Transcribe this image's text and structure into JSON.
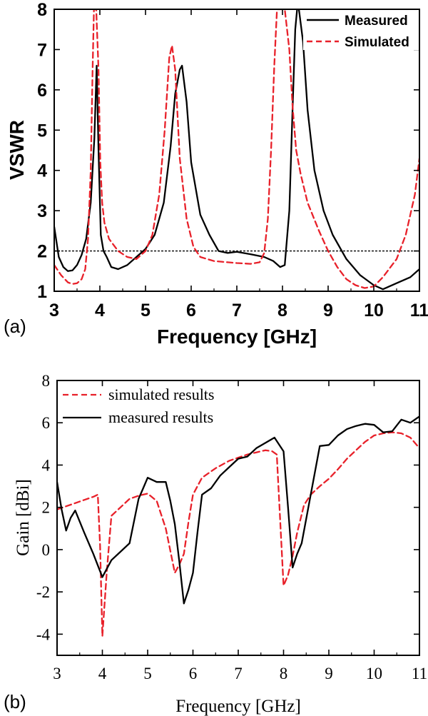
{
  "chart_data": [
    {
      "type": "line",
      "panel_label": "(a)",
      "xlabel": "Frequency [GHz]",
      "ylabel": "VSWR",
      "xlim": [
        3,
        11
      ],
      "ylim": [
        1,
        8
      ],
      "xticks": [
        3,
        4,
        5,
        6,
        7,
        8,
        9,
        10,
        11
      ],
      "yticks": [
        1,
        2,
        3,
        4,
        5,
        6,
        7,
        8
      ],
      "xtick_labels": [
        "3",
        "4",
        "5",
        "6",
        "7",
        "8",
        "9",
        "10",
        "11"
      ],
      "ytick_labels": [
        "1",
        "2",
        "3",
        "4",
        "5",
        "6",
        "7",
        "8"
      ],
      "reference_line": {
        "y": 2,
        "style": "dotted"
      },
      "legend_placement": "top-right",
      "series": [
        {
          "name": "Measured",
          "color": "#000000",
          "dash": "solid",
          "x": [
            3.0,
            3.1,
            3.2,
            3.3,
            3.4,
            3.5,
            3.6,
            3.7,
            3.8,
            3.88,
            3.93,
            3.97,
            4.02,
            4.08,
            4.15,
            4.25,
            4.4,
            4.6,
            4.8,
            5.0,
            5.2,
            5.4,
            5.55,
            5.65,
            5.75,
            5.8,
            5.9,
            6.0,
            6.2,
            6.4,
            6.6,
            6.8,
            7.0,
            7.3,
            7.6,
            7.8,
            7.95,
            8.05,
            8.15,
            8.22,
            8.28,
            8.32,
            8.36,
            8.45,
            8.55,
            8.7,
            8.9,
            9.1,
            9.4,
            9.7,
            10.0,
            10.2,
            10.5,
            10.8,
            11.0
          ],
          "y": [
            2.6,
            1.85,
            1.6,
            1.5,
            1.52,
            1.65,
            1.9,
            2.3,
            3.2,
            4.8,
            6.6,
            4.5,
            2.4,
            2.0,
            1.85,
            1.6,
            1.55,
            1.65,
            1.85,
            2.05,
            2.4,
            3.2,
            4.6,
            5.9,
            6.5,
            6.6,
            5.7,
            4.2,
            2.9,
            2.4,
            2.0,
            1.95,
            1.98,
            1.92,
            1.85,
            1.75,
            1.6,
            1.65,
            3.0,
            5.5,
            7.5,
            8.0,
            8.0,
            7.2,
            5.5,
            4.0,
            3.0,
            2.4,
            1.8,
            1.4,
            1.15,
            1.05,
            1.2,
            1.35,
            1.55
          ]
        },
        {
          "name": "Simulated",
          "color": "#e8212a",
          "dash": "dashed",
          "x": [
            3.0,
            3.15,
            3.3,
            3.4,
            3.5,
            3.6,
            3.68,
            3.74,
            3.8,
            3.84,
            3.87,
            3.92,
            3.97,
            4.01,
            4.05,
            4.1,
            4.2,
            4.4,
            4.6,
            4.8,
            5.0,
            5.15,
            5.3,
            5.42,
            5.52,
            5.58,
            5.65,
            5.75,
            5.9,
            6.05,
            6.2,
            6.5,
            6.8,
            7.0,
            7.3,
            7.5,
            7.6,
            7.68,
            7.75,
            7.82,
            7.88,
            7.95,
            8.05,
            8.15,
            8.22,
            8.3,
            8.4,
            8.55,
            8.8,
            9.0,
            9.2,
            9.4,
            9.6,
            9.8,
            10.0,
            10.2,
            10.5,
            10.7,
            10.9,
            11.0
          ],
          "y": [
            1.65,
            1.4,
            1.22,
            1.18,
            1.2,
            1.3,
            1.55,
            2.3,
            4.0,
            6.5,
            8.0,
            8.0,
            6.5,
            4.2,
            3.2,
            2.7,
            2.3,
            2.0,
            1.85,
            1.8,
            2.0,
            2.4,
            3.4,
            5.0,
            6.8,
            7.1,
            6.5,
            4.3,
            2.8,
            2.1,
            1.85,
            1.75,
            1.72,
            1.7,
            1.68,
            1.72,
            1.95,
            2.8,
            4.5,
            6.6,
            8.0,
            8.0,
            8.0,
            7.0,
            5.6,
            4.5,
            3.9,
            3.2,
            2.5,
            2.0,
            1.6,
            1.3,
            1.15,
            1.08,
            1.12,
            1.35,
            1.8,
            2.4,
            3.4,
            4.3
          ]
        }
      ]
    },
    {
      "type": "line",
      "panel_label": "(b)",
      "xlabel": "Frequency [GHz]",
      "ylabel": "Gain [dBi]",
      "xlim": [
        3,
        11
      ],
      "ylim": [
        -5,
        8
      ],
      "xticks": [
        3,
        4,
        5,
        6,
        7,
        8,
        9,
        10,
        11
      ],
      "yticks": [
        -4,
        -2,
        0,
        2,
        4,
        6,
        8
      ],
      "xtick_labels": [
        "3",
        "4",
        "5",
        "6",
        "7",
        "8",
        "9",
        "10",
        "11"
      ],
      "ytick_labels": [
        "-4",
        "-2",
        "0",
        "2",
        "4",
        "6",
        "8"
      ],
      "legend_placement": "top-left",
      "series": [
        {
          "name": "simulated results",
          "color": "#e8212a",
          "dash": "dashed",
          "x": [
            3.0,
            3.2,
            3.4,
            3.6,
            3.8,
            3.9,
            3.95,
            4.0,
            4.1,
            4.2,
            4.4,
            4.6,
            4.8,
            5.0,
            5.2,
            5.4,
            5.6,
            5.7,
            5.8,
            5.9,
            6.0,
            6.2,
            6.5,
            6.8,
            7.0,
            7.2,
            7.4,
            7.6,
            7.75,
            7.85,
            8.0,
            8.1,
            8.2,
            8.3,
            8.45,
            8.6,
            8.8,
            9.0,
            9.2,
            9.4,
            9.6,
            9.8,
            10.0,
            10.2,
            10.4,
            10.6,
            10.8,
            11.0
          ],
          "y": [
            1.9,
            2.05,
            2.2,
            2.35,
            2.5,
            2.6,
            0.2,
            -4.1,
            -1.0,
            1.6,
            2.0,
            2.4,
            2.55,
            2.65,
            2.3,
            1.0,
            -1.1,
            -0.7,
            -0.2,
            1.3,
            2.6,
            3.4,
            3.85,
            4.2,
            4.35,
            4.5,
            4.6,
            4.7,
            4.65,
            4.5,
            -1.7,
            -1.2,
            -0.3,
            0.8,
            2.1,
            2.6,
            3.0,
            3.35,
            3.8,
            4.3,
            4.7,
            5.1,
            5.4,
            5.5,
            5.55,
            5.5,
            5.3,
            4.8
          ]
        },
        {
          "name": "measured results",
          "color": "#000000",
          "dash": "solid",
          "x": [
            3.0,
            3.1,
            3.2,
            3.3,
            3.4,
            3.6,
            3.8,
            4.0,
            4.2,
            4.4,
            4.6,
            4.8,
            4.9,
            5.0,
            5.2,
            5.4,
            5.5,
            5.6,
            5.7,
            5.8,
            5.9,
            6.0,
            6.1,
            6.2,
            6.4,
            6.6,
            6.8,
            7.0,
            7.2,
            7.4,
            7.6,
            7.8,
            8.0,
            8.1,
            8.2,
            8.3,
            8.4,
            8.6,
            8.8,
            9.0,
            9.2,
            9.4,
            9.6,
            9.8,
            10.0,
            10.2,
            10.4,
            10.6,
            10.8,
            11.0
          ],
          "y": [
            3.2,
            1.9,
            0.9,
            1.5,
            1.85,
            0.8,
            -0.2,
            -1.3,
            -0.5,
            -0.1,
            0.3,
            2.4,
            2.9,
            3.4,
            3.2,
            3.2,
            2.3,
            1.2,
            -0.6,
            -2.55,
            -1.9,
            -1.1,
            0.8,
            2.6,
            2.9,
            3.5,
            3.9,
            4.3,
            4.4,
            4.8,
            5.05,
            5.3,
            4.65,
            2.0,
            -0.85,
            -0.2,
            0.3,
            2.6,
            4.9,
            4.95,
            5.4,
            5.7,
            5.85,
            5.95,
            5.9,
            5.55,
            5.6,
            6.15,
            6.0,
            6.3
          ]
        }
      ]
    }
  ]
}
